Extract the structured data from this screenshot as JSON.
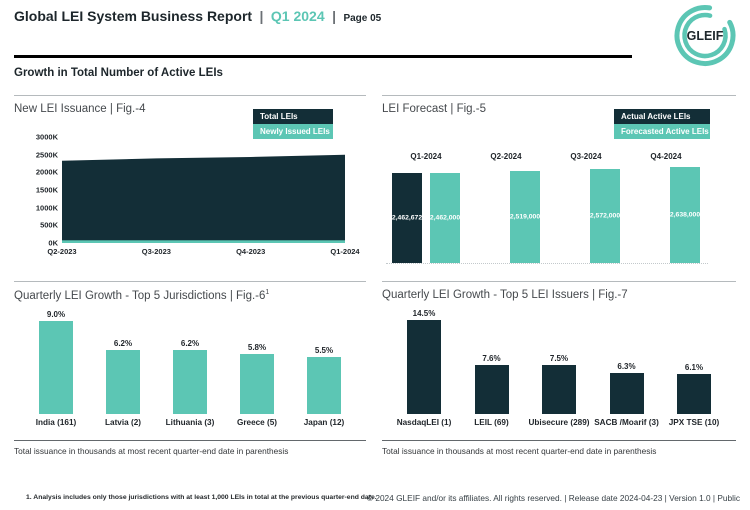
{
  "page": {
    "header": {
      "title": "Global LEI System Business Report",
      "separator": "|",
      "period": "Q1 2024",
      "page_label": "Page 05",
      "logo_text": "GLEIF"
    },
    "section_title": "Growth in Total Number of Active LEIs",
    "footnote": "1. Analysis includes only those jurisdictions with at least 1,000 LEIs in total at the previous quarter-end date.",
    "footer": "© 2024 GLEIF and/or its affiliates. All rights reserved. | Release date 2024-04-23 | Version 1.0 | Public"
  },
  "colors": {
    "teal": "#5cc6b4",
    "dark": "#132e37"
  },
  "chart_data": [
    {
      "id": "fig4",
      "type": "area",
      "title": "New LEI Issuance | Fig.-4",
      "x": [
        "Q2-2023",
        "Q3-2023",
        "Q4-2023",
        "Q1-2024"
      ],
      "y_ticks": [
        "3000K",
        "2500K",
        "2000K",
        "1500K",
        "1000K",
        "500K",
        "0K"
      ],
      "ylim": [
        0,
        3000000
      ],
      "series": [
        {
          "name": "Total LEIs",
          "color_key": "dark",
          "values": [
            2330000,
            2395000,
            2435000,
            2500000
          ]
        },
        {
          "name": "Newly Issued LEIs",
          "color_key": "teal",
          "values": [
            75000,
            78000,
            82000,
            85000
          ]
        }
      ],
      "legend_position": "top-right",
      "grid": false
    },
    {
      "id": "fig5",
      "type": "bar",
      "title": "LEI Forecast | Fig.-5",
      "categories": [
        "Q1-2024",
        "Q2-2024",
        "Q3-2024",
        "Q4-2024"
      ],
      "series": [
        {
          "name": "Actual Active LEIs",
          "color_key": "dark",
          "values": [
            2462672,
            null,
            null,
            null
          ],
          "labels": [
            "2,462,672",
            "",
            "",
            ""
          ]
        },
        {
          "name": "Forecasted Active LEIs",
          "color_key": "teal",
          "values": [
            2462000,
            2519000,
            2572000,
            2638000
          ],
          "labels": [
            "2,462,000",
            "2,519,000",
            "2,572,000",
            "2,638,000"
          ]
        }
      ],
      "legend_position": "top-right",
      "grid": false
    },
    {
      "id": "fig6",
      "type": "bar",
      "title": "Quarterly LEI Growth - Top 5 Jurisdictions | Fig.-6",
      "sup": "1",
      "categories": [
        "India (161)",
        "Latvia (2)",
        "Lithuania (3)",
        "Greece (5)",
        "Japan (12)"
      ],
      "values": [
        9.0,
        6.2,
        6.2,
        5.8,
        5.5
      ],
      "labels": [
        "9.0%",
        "6.2%",
        "6.2%",
        "5.8%",
        "5.5%"
      ],
      "bar_color_key": "teal",
      "note": "Total issuance in thousands at most recent quarter-end date in parenthesis",
      "grid": false
    },
    {
      "id": "fig7",
      "type": "bar",
      "title": "Quarterly LEI Growth - Top 5 LEI Issuers | Fig.-7",
      "categories": [
        "NasdaqLEI (1)",
        "LEIL (69)",
        "Ubisecure (289)",
        "SACB /Moarif (3)",
        "JPX TSE (10)"
      ],
      "values": [
        14.5,
        7.6,
        7.5,
        6.3,
        6.1
      ],
      "labels": [
        "14.5%",
        "7.6%",
        "7.5%",
        "6.3%",
        "6.1%"
      ],
      "bar_color_key": "dark",
      "note": "Total issuance in thousands at most recent quarter-end date in parenthesis",
      "grid": false
    }
  ]
}
